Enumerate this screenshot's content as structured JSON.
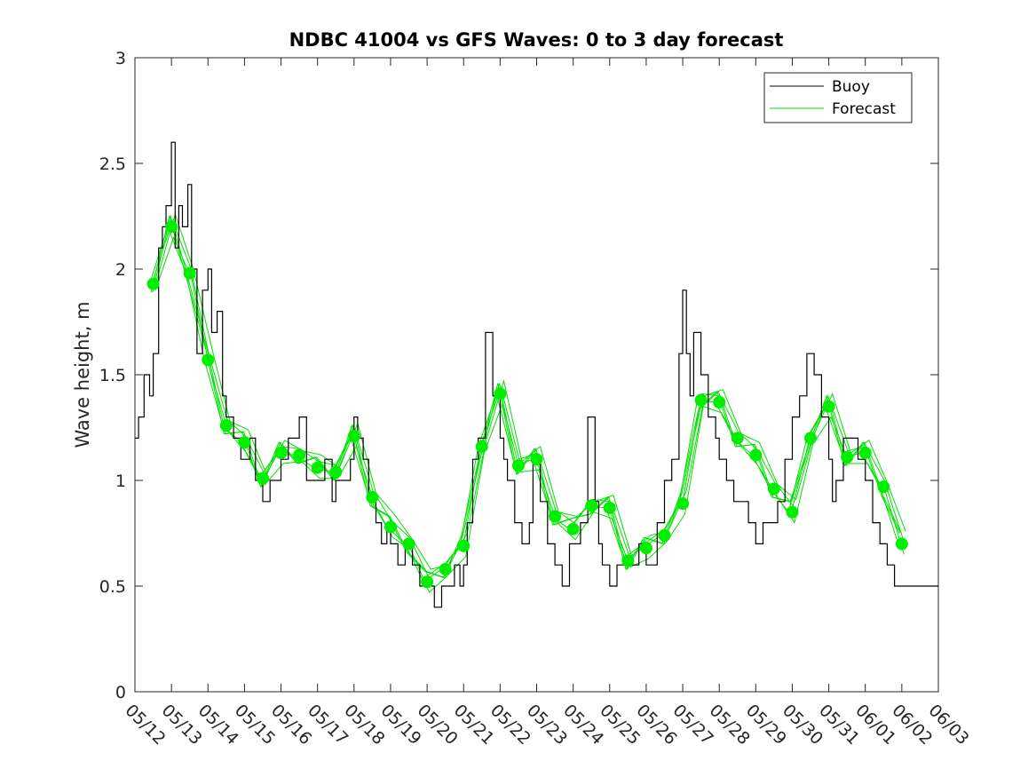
{
  "chart_data": {
    "type": "line",
    "title": "NDBC 41004 vs GFS Waves: 0 to 3 day forecast",
    "xlabel": "",
    "ylabel": "Wave height, m",
    "ylim": [
      0,
      3
    ],
    "yticks": [
      "0",
      "0.5",
      "1",
      "1.5",
      "2",
      "2.5",
      "3"
    ],
    "xticks": [
      "05/12",
      "05/13",
      "05/14",
      "05/15",
      "05/16",
      "05/17",
      "05/18",
      "05/19",
      "05/20",
      "05/21",
      "05/22",
      "05/23",
      "05/24",
      "05/25",
      "05/26",
      "05/27",
      "05/28",
      "05/29",
      "05/30",
      "05/31",
      "06/01",
      "06/02",
      "06/03"
    ],
    "xlim_days": [
      0,
      22
    ],
    "grid": false,
    "legend": {
      "placement": "top-right",
      "entries": [
        {
          "name": "Buoy",
          "color": "#000000"
        },
        {
          "name": "Forecast",
          "color": "#00e000"
        }
      ]
    },
    "colors": {
      "buoy": "#000000",
      "forecast": "#00e000",
      "markers": "#00ee00"
    },
    "buoy_series": {
      "name": "Buoy",
      "x_days": [
        0,
        0.1,
        0.25,
        0.4,
        0.5,
        0.65,
        0.75,
        0.85,
        1.0,
        1.1,
        1.2,
        1.3,
        1.45,
        1.55,
        1.7,
        1.85,
        2.0,
        2.1,
        2.25,
        2.4,
        2.5,
        2.7,
        2.9,
        3.0,
        3.15,
        3.3,
        3.5,
        3.7,
        3.85,
        4.0,
        4.2,
        4.35,
        4.5,
        4.7,
        4.9,
        5.0,
        5.2,
        5.4,
        5.5,
        5.7,
        5.9,
        6.0,
        6.1,
        6.25,
        6.4,
        6.6,
        6.75,
        6.9,
        7.0,
        7.2,
        7.4,
        7.6,
        7.8,
        7.9,
        8.0,
        8.2,
        8.4,
        8.6,
        8.75,
        8.9,
        9.0,
        9.1,
        9.25,
        9.4,
        9.6,
        9.8,
        10.0,
        10.1,
        10.2,
        10.4,
        10.6,
        10.7,
        10.8,
        10.9,
        11.1,
        11.3,
        11.5,
        11.7,
        11.9,
        12.0,
        12.2,
        12.4,
        12.6,
        12.7,
        12.8,
        13.0,
        13.2,
        13.4,
        13.6,
        13.8,
        14.0,
        14.2,
        14.3,
        14.5,
        14.7,
        14.9,
        15.0,
        15.1,
        15.2,
        15.3,
        15.5,
        15.7,
        15.9,
        16.0,
        16.2,
        16.4,
        16.6,
        16.8,
        17.0,
        17.2,
        17.4,
        17.6,
        17.8,
        18.0,
        18.2,
        18.4,
        18.6,
        18.8,
        19.0,
        19.1,
        19.2,
        19.4,
        19.6,
        19.8,
        20.0,
        20.2,
        20.4,
        20.6,
        20.8,
        21.0,
        21.2,
        21.4,
        21.6,
        21.8,
        22.0
      ],
      "values": [
        1.2,
        1.3,
        1.5,
        1.4,
        1.6,
        2.1,
        2.2,
        2.3,
        2.6,
        2.1,
        2.3,
        2.2,
        2.4,
        2.0,
        1.6,
        1.9,
        2.0,
        1.7,
        1.8,
        1.4,
        1.3,
        1.2,
        1.1,
        1.1,
        1.2,
        1.0,
        0.9,
        1.0,
        1.0,
        1.1,
        1.2,
        1.2,
        1.3,
        1.0,
        1.0,
        1.0,
        1.1,
        0.9,
        1.0,
        1.0,
        1.1,
        1.3,
        1.2,
        1.1,
        0.9,
        0.8,
        0.7,
        0.8,
        0.7,
        0.6,
        0.7,
        0.6,
        0.5,
        0.5,
        0.5,
        0.4,
        0.5,
        0.5,
        0.6,
        0.5,
        0.6,
        0.8,
        1.1,
        1.2,
        1.7,
        1.4,
        1.2,
        1.1,
        1.0,
        0.8,
        0.7,
        0.7,
        0.8,
        1.1,
        0.9,
        0.7,
        0.6,
        0.5,
        0.7,
        0.7,
        0.8,
        1.3,
        0.9,
        0.7,
        0.6,
        0.5,
        0.6,
        0.6,
        0.6,
        0.7,
        0.6,
        0.6,
        0.8,
        1.0,
        1.1,
        1.6,
        1.9,
        1.6,
        1.4,
        1.7,
        1.5,
        1.3,
        1.2,
        1.1,
        1.0,
        0.9,
        0.9,
        0.8,
        0.7,
        0.8,
        0.8,
        0.9,
        1.1,
        1.3,
        1.4,
        1.6,
        1.5,
        1.3,
        1.1,
        0.9,
        1.0,
        1.2,
        1.2,
        1.1,
        1.0,
        0.8,
        0.7,
        0.6,
        0.5,
        0.5,
        0.5,
        0.5,
        0.5,
        0.5,
        0.5
      ]
    },
    "forecast_markers": {
      "name": "Forecast",
      "x_days": [
        0.5,
        1.0,
        1.5,
        2.0,
        2.5,
        3.0,
        3.5,
        4.0,
        4.5,
        5.0,
        5.5,
        6.0,
        6.5,
        7.0,
        7.5,
        8.0,
        8.5,
        9.0,
        9.5,
        10.0,
        10.5,
        11.0,
        11.5,
        12.0,
        12.5,
        13.0,
        13.5,
        14.0,
        14.5,
        15.0,
        15.5,
        16.0,
        16.5,
        17.0,
        17.5,
        18.0,
        18.5,
        19.0,
        19.5,
        20.0,
        20.5,
        21.0
      ],
      "values": [
        1.93,
        2.2,
        1.98,
        1.57,
        1.26,
        1.18,
        1.01,
        1.13,
        1.12,
        1.06,
        1.04,
        1.21,
        0.92,
        0.78,
        0.7,
        0.52,
        0.58,
        0.69,
        1.16,
        1.41,
        1.07,
        1.1,
        0.83,
        0.77,
        0.88,
        0.87,
        0.62,
        0.68,
        0.74,
        0.89,
        1.38,
        1.37,
        1.2,
        1.12,
        0.96,
        0.85,
        1.2,
        1.35,
        1.11,
        1.13,
        0.97,
        0.7
      ]
    }
  }
}
